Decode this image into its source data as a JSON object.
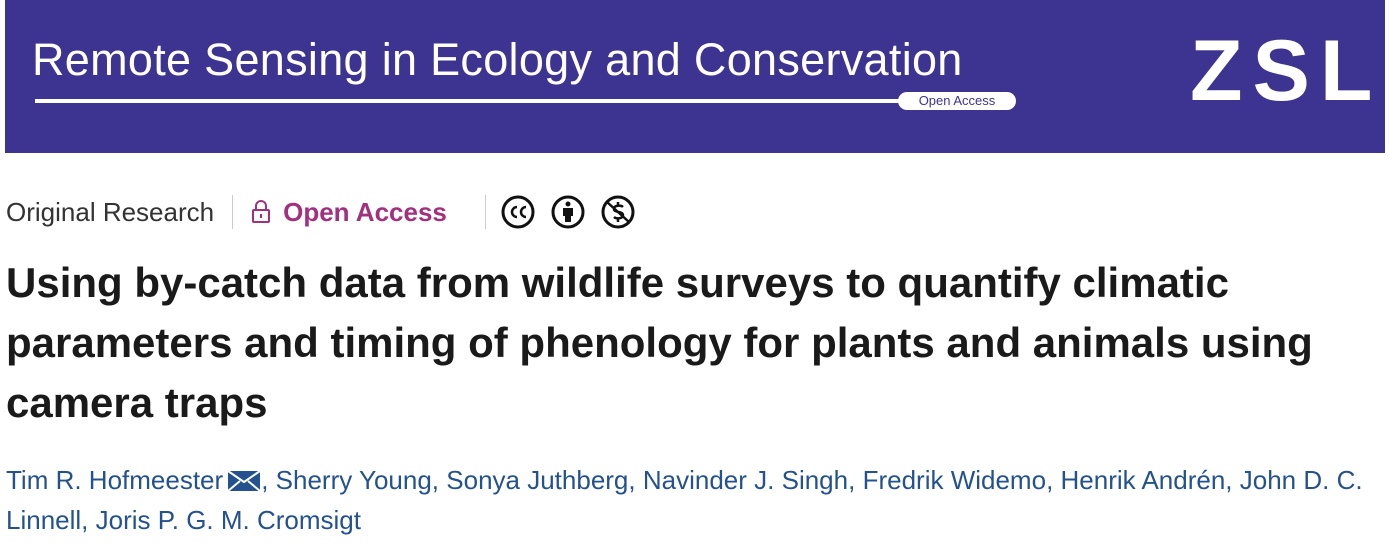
{
  "banner": {
    "journal_title": "Remote Sensing in Ecology and Conservation",
    "badge": "Open Access",
    "logo": "ZSL"
  },
  "meta": {
    "article_type": "Original Research",
    "access": "Open Access"
  },
  "title": "Using by-catch data from wildlife surveys to quantify climatic parameters and timing of phenology for plants and animals using camera traps",
  "authors": [
    "Tim R. Hofmeester",
    "Sherry Young",
    "Sonya Juthberg",
    "Navinder J. Singh",
    "Fredrik Widemo",
    "Henrik Andrén",
    "John D. C. Linnell",
    "Joris P. G. M. Cromsigt"
  ],
  "author_separator": ","
}
